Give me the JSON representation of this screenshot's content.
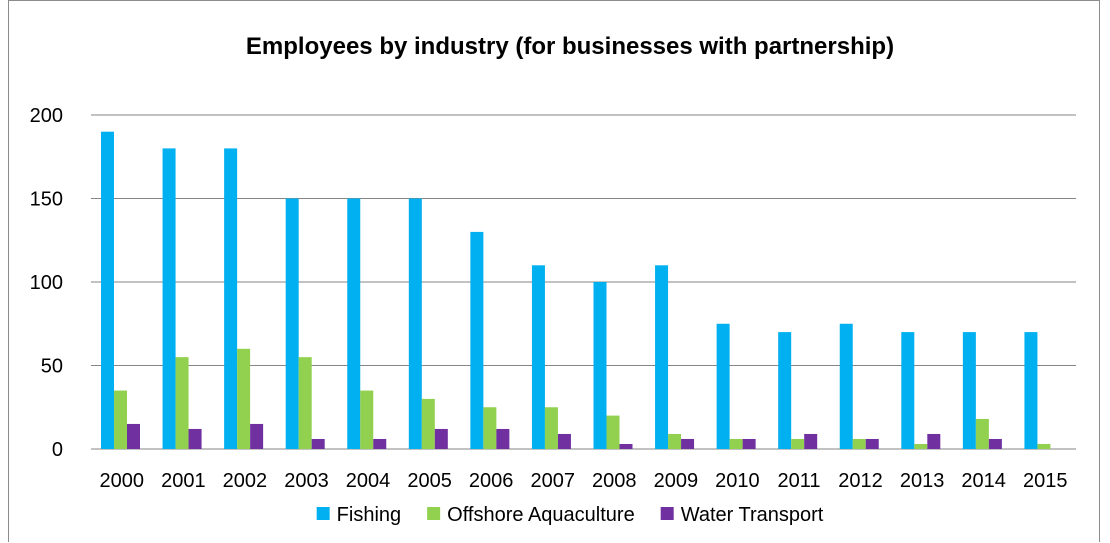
{
  "chart_data": {
    "type": "bar",
    "title": "Employees by industry (for businesses with partnership)",
    "xlabel": "",
    "ylabel": "",
    "categories": [
      "2000",
      "2001",
      "2002",
      "2003",
      "2004",
      "2005",
      "2006",
      "2007",
      "2008",
      "2009",
      "2010",
      "2011",
      "2012",
      "2013",
      "2014",
      "2015"
    ],
    "series": [
      {
        "name": "Fishing",
        "color": "#00B0F0",
        "values": [
          190,
          180,
          180,
          150,
          150,
          150,
          130,
          110,
          100,
          110,
          75,
          70,
          75,
          70,
          70,
          70
        ]
      },
      {
        "name": "Offshore Aquaculture",
        "color": "#92D050",
        "values": [
          35,
          55,
          60,
          55,
          35,
          30,
          25,
          25,
          20,
          9,
          6,
          6,
          6,
          3,
          18,
          3
        ]
      },
      {
        "name": "Water Transport",
        "color": "#7030A0",
        "values": [
          15,
          12,
          15,
          6,
          6,
          12,
          12,
          9,
          3,
          6,
          6,
          9,
          6,
          9,
          6,
          0
        ]
      }
    ],
    "ylim": [
      0,
      200
    ],
    "yticks": [
      "0",
      "50",
      "100",
      "150",
      "200"
    ],
    "grid": true,
    "gridline_color": "#868686",
    "legend_position": "bottom"
  }
}
